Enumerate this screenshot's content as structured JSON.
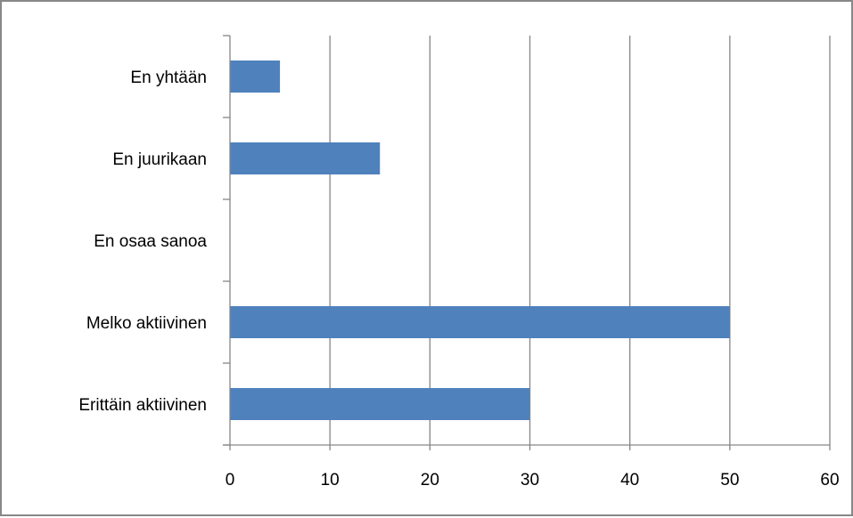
{
  "chart_data": {
    "type": "bar",
    "orientation": "horizontal",
    "categories": [
      "Erittäin aktiivinen",
      "Melko aktiivinen",
      "En osaa sanoa",
      "En juurikaan",
      "En yhtään"
    ],
    "values": [
      30,
      50,
      0,
      15,
      5
    ],
    "xlim": [
      0,
      60
    ],
    "xticks": [
      "0",
      "10",
      "20",
      "30",
      "40",
      "50",
      "60"
    ],
    "grid": "vertical",
    "legend": "none",
    "colors": {
      "bar": "#4f81bd",
      "grid": "#868686",
      "axis": "#868686"
    }
  }
}
